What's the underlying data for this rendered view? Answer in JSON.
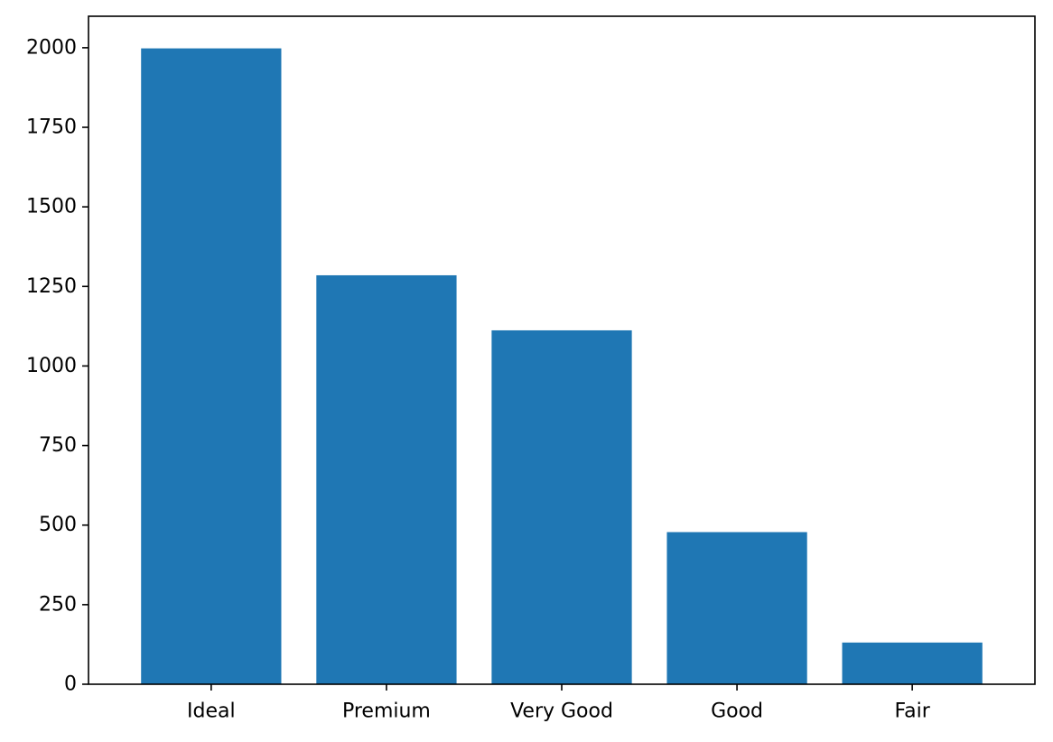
{
  "chart_data": {
    "type": "bar",
    "title": "",
    "xlabel": "",
    "ylabel": "",
    "categories": [
      "Ideal",
      "Premium",
      "Very Good",
      "Good",
      "Fair"
    ],
    "values": [
      1998,
      1285,
      1112,
      478,
      131
    ],
    "ylim": [
      0,
      2098.95
    ],
    "yticks": [
      0,
      250,
      500,
      750,
      1000,
      1250,
      1500,
      1750,
      2000
    ],
    "bar_color": "#1f77b4",
    "grid": false,
    "legend": "none"
  }
}
